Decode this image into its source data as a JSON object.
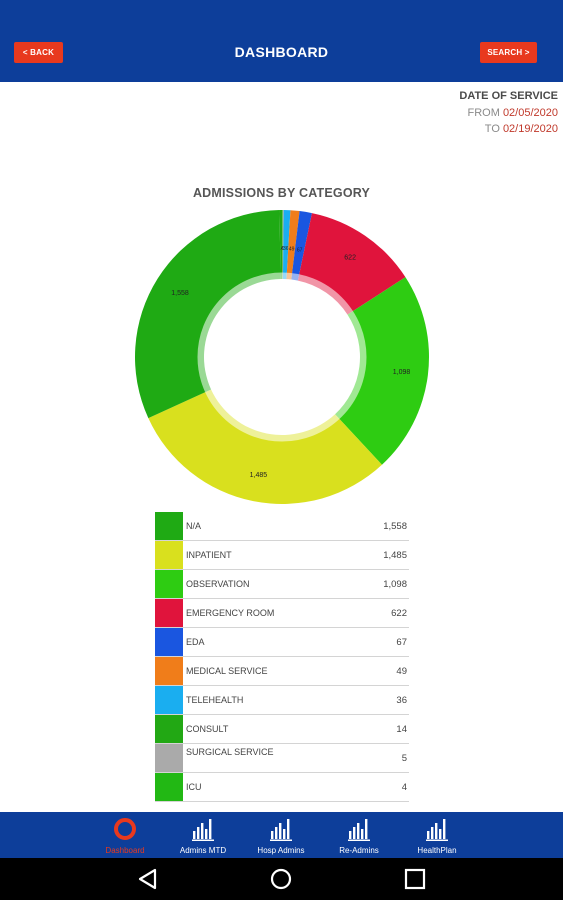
{
  "header": {
    "back_label": "< BACK",
    "title": "DASHBOARD",
    "search_label": "SEARCH >"
  },
  "date_of_service": {
    "title": "DATE OF SERVICE",
    "from_label": "FROM",
    "from_date": "02/05/2020",
    "to_label": "TO",
    "to_date": "02/19/2020"
  },
  "chart_data": {
    "type": "pie",
    "donut": true,
    "title": "ADMISSIONS BY CATEGORY",
    "series": [
      {
        "name": "N/A",
        "value": 1558,
        "label": "1,558",
        "color": "#1faa14"
      },
      {
        "name": "INPATIENT",
        "value": 1485,
        "label": "1,485",
        "color": "#d9e01e"
      },
      {
        "name": "OBSERVATION",
        "value": 1098,
        "label": "1,098",
        "color": "#2ecc12"
      },
      {
        "name": "EMERGENCY ROOM",
        "value": 622,
        "label": "622",
        "color": "#e0143c"
      },
      {
        "name": "EDA",
        "value": 67,
        "label": "67",
        "color": "#1a56e0"
      },
      {
        "name": "MEDICAL SERVICE",
        "value": 49,
        "label": "49",
        "color": "#f07d1a"
      },
      {
        "name": "TELEHEALTH",
        "value": 36,
        "label": "36",
        "color": "#1aaef0"
      },
      {
        "name": "CONSULT",
        "value": 14,
        "label": "14",
        "color": "#22a814"
      },
      {
        "name": "SURGICAL SERVICE",
        "value": 5,
        "label": "5",
        "color": "#aaaaaa"
      },
      {
        "name": "ICU",
        "value": 4,
        "label": "4",
        "color": "#22b814"
      }
    ],
    "slice_order": [
      "CONSULT",
      "ICU",
      "SURGICAL SERVICE",
      "TELEHEALTH",
      "MEDICAL SERVICE",
      "EDA",
      "EMERGENCY ROOM",
      "OBSERVATION",
      "INPATIENT",
      "N/A"
    ]
  },
  "nav": {
    "items": [
      {
        "label": "Dashboard",
        "icon": "dashboard-ring-icon"
      },
      {
        "label": "Admins MTD",
        "icon": "bar-chart-icon"
      },
      {
        "label": "Hosp Admins",
        "icon": "bar-chart-icon"
      },
      {
        "label": "Re-Admins",
        "icon": "bar-chart-icon"
      },
      {
        "label": "HealthPlan",
        "icon": "bar-chart-icon"
      }
    ],
    "active_index": 0,
    "active_color": "#e8391e"
  },
  "system_bar": {
    "buttons": [
      "back-triangle-icon",
      "home-circle-icon",
      "recents-square-icon"
    ]
  }
}
